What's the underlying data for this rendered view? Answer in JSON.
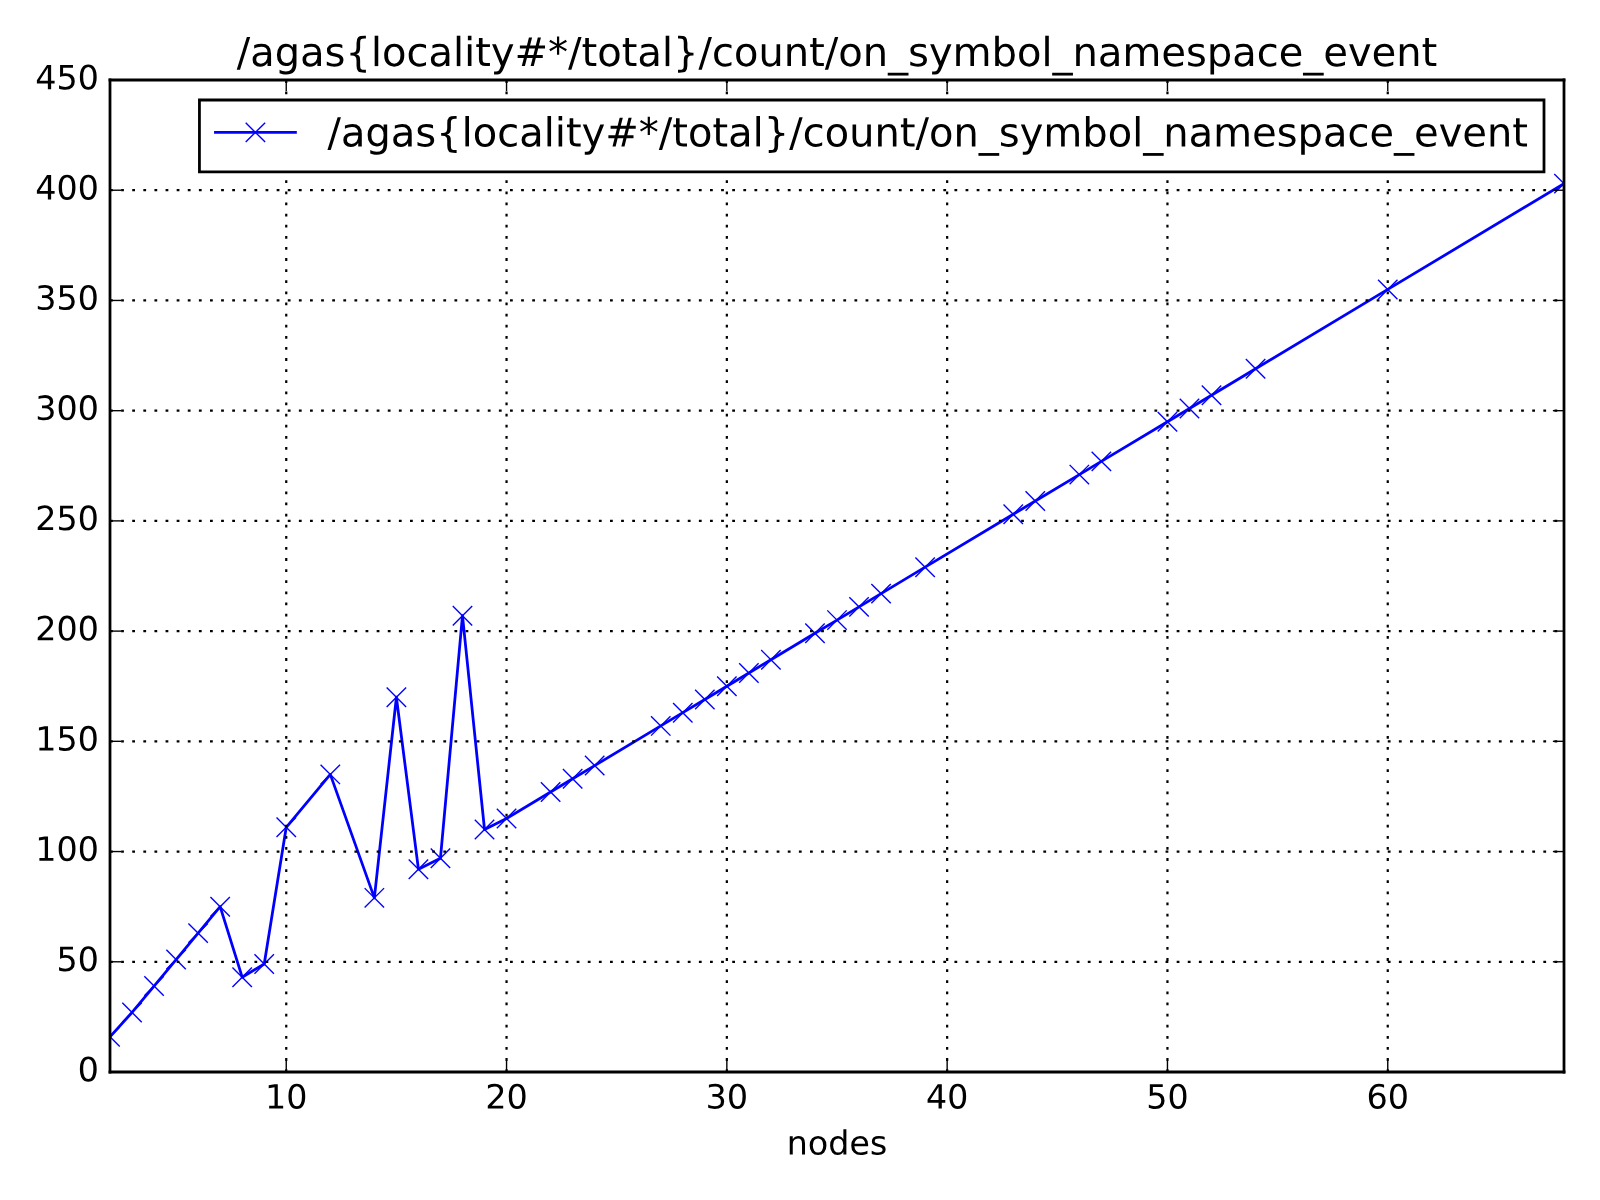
{
  "chart_data": {
    "type": "line",
    "title": "/agas{locality#*/total}/count/on_symbol_namespace_event",
    "xlabel": "nodes",
    "x": [
      2,
      3,
      4,
      5,
      6,
      7,
      8,
      9,
      10,
      12,
      14,
      15,
      16,
      17,
      18,
      19,
      20,
      22,
      23,
      24,
      27,
      28,
      29,
      30,
      31,
      32,
      34,
      35,
      36,
      37,
      39,
      43,
      44,
      46,
      47,
      50,
      51,
      52,
      54,
      60,
      68
    ],
    "series": [
      {
        "name": "/agas{locality#*/total}/count/on_symbol_namespace_event",
        "color": "#0000ff",
        "values": [
          16,
          27,
          39,
          51,
          63,
          75,
          43,
          49,
          111,
          135,
          79,
          170,
          92,
          97,
          207,
          110,
          115,
          127,
          133,
          139,
          157,
          163,
          169,
          175,
          181,
          187,
          199,
          205,
          211,
          217,
          229,
          253,
          259,
          271,
          277,
          295,
          301,
          307,
          319,
          355,
          403
        ]
      }
    ],
    "xlim": [
      2,
      68
    ],
    "ylim": [
      0,
      450
    ],
    "xticks": [
      10,
      20,
      30,
      40,
      50,
      60
    ],
    "yticks": [
      0,
      50,
      100,
      150,
      200,
      250,
      300,
      350,
      400,
      450
    ],
    "grid": true,
    "legend": "top right",
    "marker": "cross",
    "line_style": "solid"
  }
}
